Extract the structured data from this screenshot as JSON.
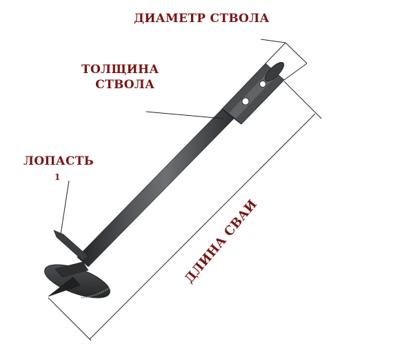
{
  "labels": {
    "diameter": "ДИАМЕТР СТВОЛА",
    "thickness_line1": "ТОЛЩИНА",
    "thickness_line2": "СТВОЛА",
    "blade": "ЛОПАСТЬ",
    "blade_number": "1",
    "length": "ДЛИНА СВАИ"
  },
  "colors": {
    "label": "#7a1414",
    "pile_body": "#3b3e40",
    "pile_highlight": "#6a6d70",
    "pile_shadow": "#1f2122",
    "dimension_line": "#222222"
  }
}
